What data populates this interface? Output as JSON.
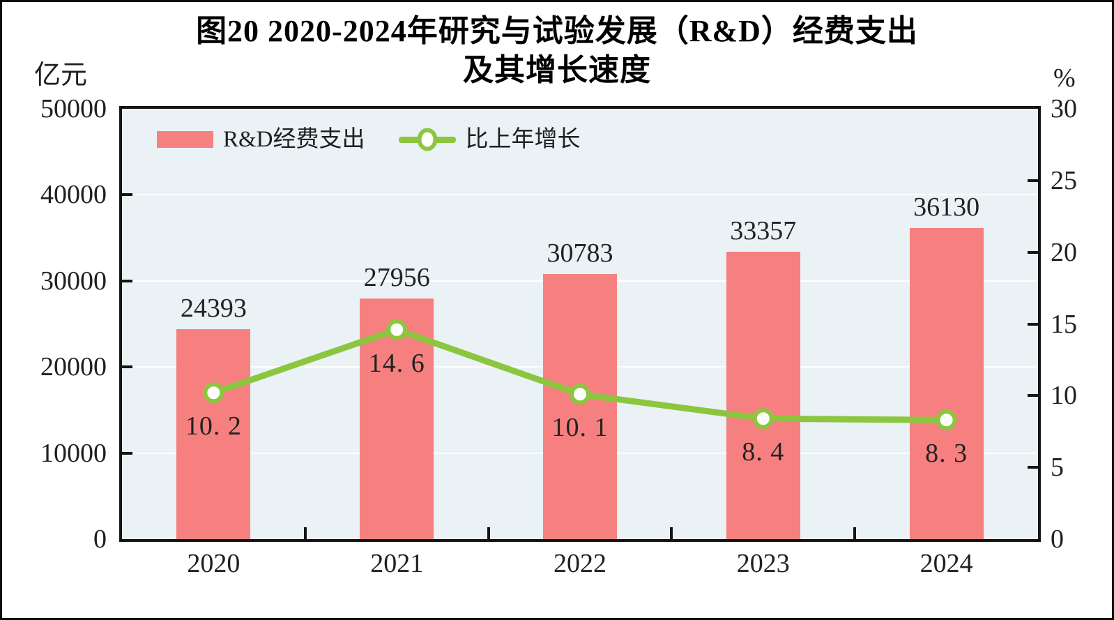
{
  "title": {
    "line1": "图20  2020-2024年研究与试验发展（R&D）经费支出",
    "line2": "及其增长速度"
  },
  "axes": {
    "left_unit": "亿元",
    "right_unit": "%",
    "left_ticks": [
      "50000",
      "40000",
      "30000",
      "20000",
      "10000",
      "0"
    ],
    "right_ticks": [
      "30",
      "25",
      "20",
      "15",
      "10",
      "5",
      "0"
    ],
    "x_ticks": [
      "2020",
      "2021",
      "2022",
      "2023",
      "2024"
    ]
  },
  "legend": {
    "bar_label": "R&D经费支出",
    "line_label": "比上年增长"
  },
  "colors": {
    "bar": "#F68080",
    "line": "#8CC63F",
    "marker_fill": "#FFFFFF",
    "plot_bg": "#EAF2F6",
    "grid": "#FFFFFF",
    "frame": "#141414",
    "text": "#222222"
  },
  "chart_data": {
    "type": "bar+line",
    "title": "图20 2020-2024年研究与试验发展（R&D）经费支出及其增长速度",
    "categories": [
      "2020",
      "2021",
      "2022",
      "2023",
      "2024"
    ],
    "series": [
      {
        "name": "R&D经费支出",
        "type": "bar",
        "axis": "left",
        "unit": "亿元",
        "values": [
          24393,
          27956,
          30783,
          33357,
          36130
        ],
        "value_labels": [
          "24393",
          "27956",
          "30783",
          "33357",
          "36130"
        ]
      },
      {
        "name": "比上年增长",
        "type": "line",
        "axis": "right",
        "unit": "%",
        "values": [
          10.2,
          14.6,
          10.1,
          8.4,
          8.3
        ],
        "value_labels": [
          "10. 2",
          "14. 6",
          "10. 1",
          "8. 4",
          "8. 3"
        ]
      }
    ],
    "left_axis": {
      "label": "亿元",
      "min": 0,
      "max": 50000,
      "step": 10000
    },
    "right_axis": {
      "label": "%",
      "min": 0,
      "max": 30,
      "step": 5
    },
    "grid": true,
    "legend_position": "top-left-inside"
  }
}
